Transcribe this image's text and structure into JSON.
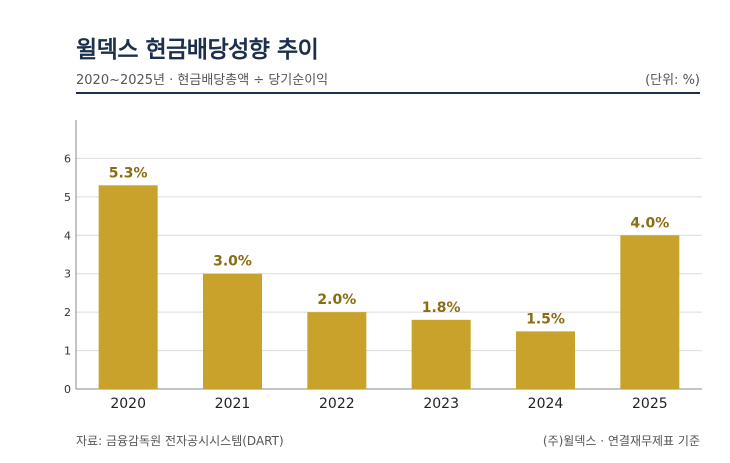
{
  "header": {
    "title": "윌덱스 현금배당성향 추이",
    "subtitle": "2020~2025년 · 현금배당총액 ÷ 당기순이익",
    "unit": "(단위: %)"
  },
  "footer": {
    "source": "자료: 금융감독원 전자공시시스템(DART)",
    "note": "(주)윌덱스 · 연결재무제표 기준"
  },
  "colors": {
    "bar": "#c9a22b",
    "label": "#8a6d12",
    "title": "#1c2f4d"
  },
  "chart_data": {
    "type": "bar",
    "categories": [
      "2020",
      "2021",
      "2022",
      "2023",
      "2024",
      "2025"
    ],
    "values": [
      5.3,
      3.0,
      2.0,
      1.8,
      1.5,
      4.0
    ],
    "data_labels": [
      "5.3%",
      "3.0%",
      "2.0%",
      "1.8%",
      "1.5%",
      "4.0%"
    ],
    "yticks": [
      "0",
      "1",
      "2",
      "3",
      "4",
      "5",
      "6"
    ],
    "ylim": [
      0,
      7
    ],
    "grid": true
  }
}
